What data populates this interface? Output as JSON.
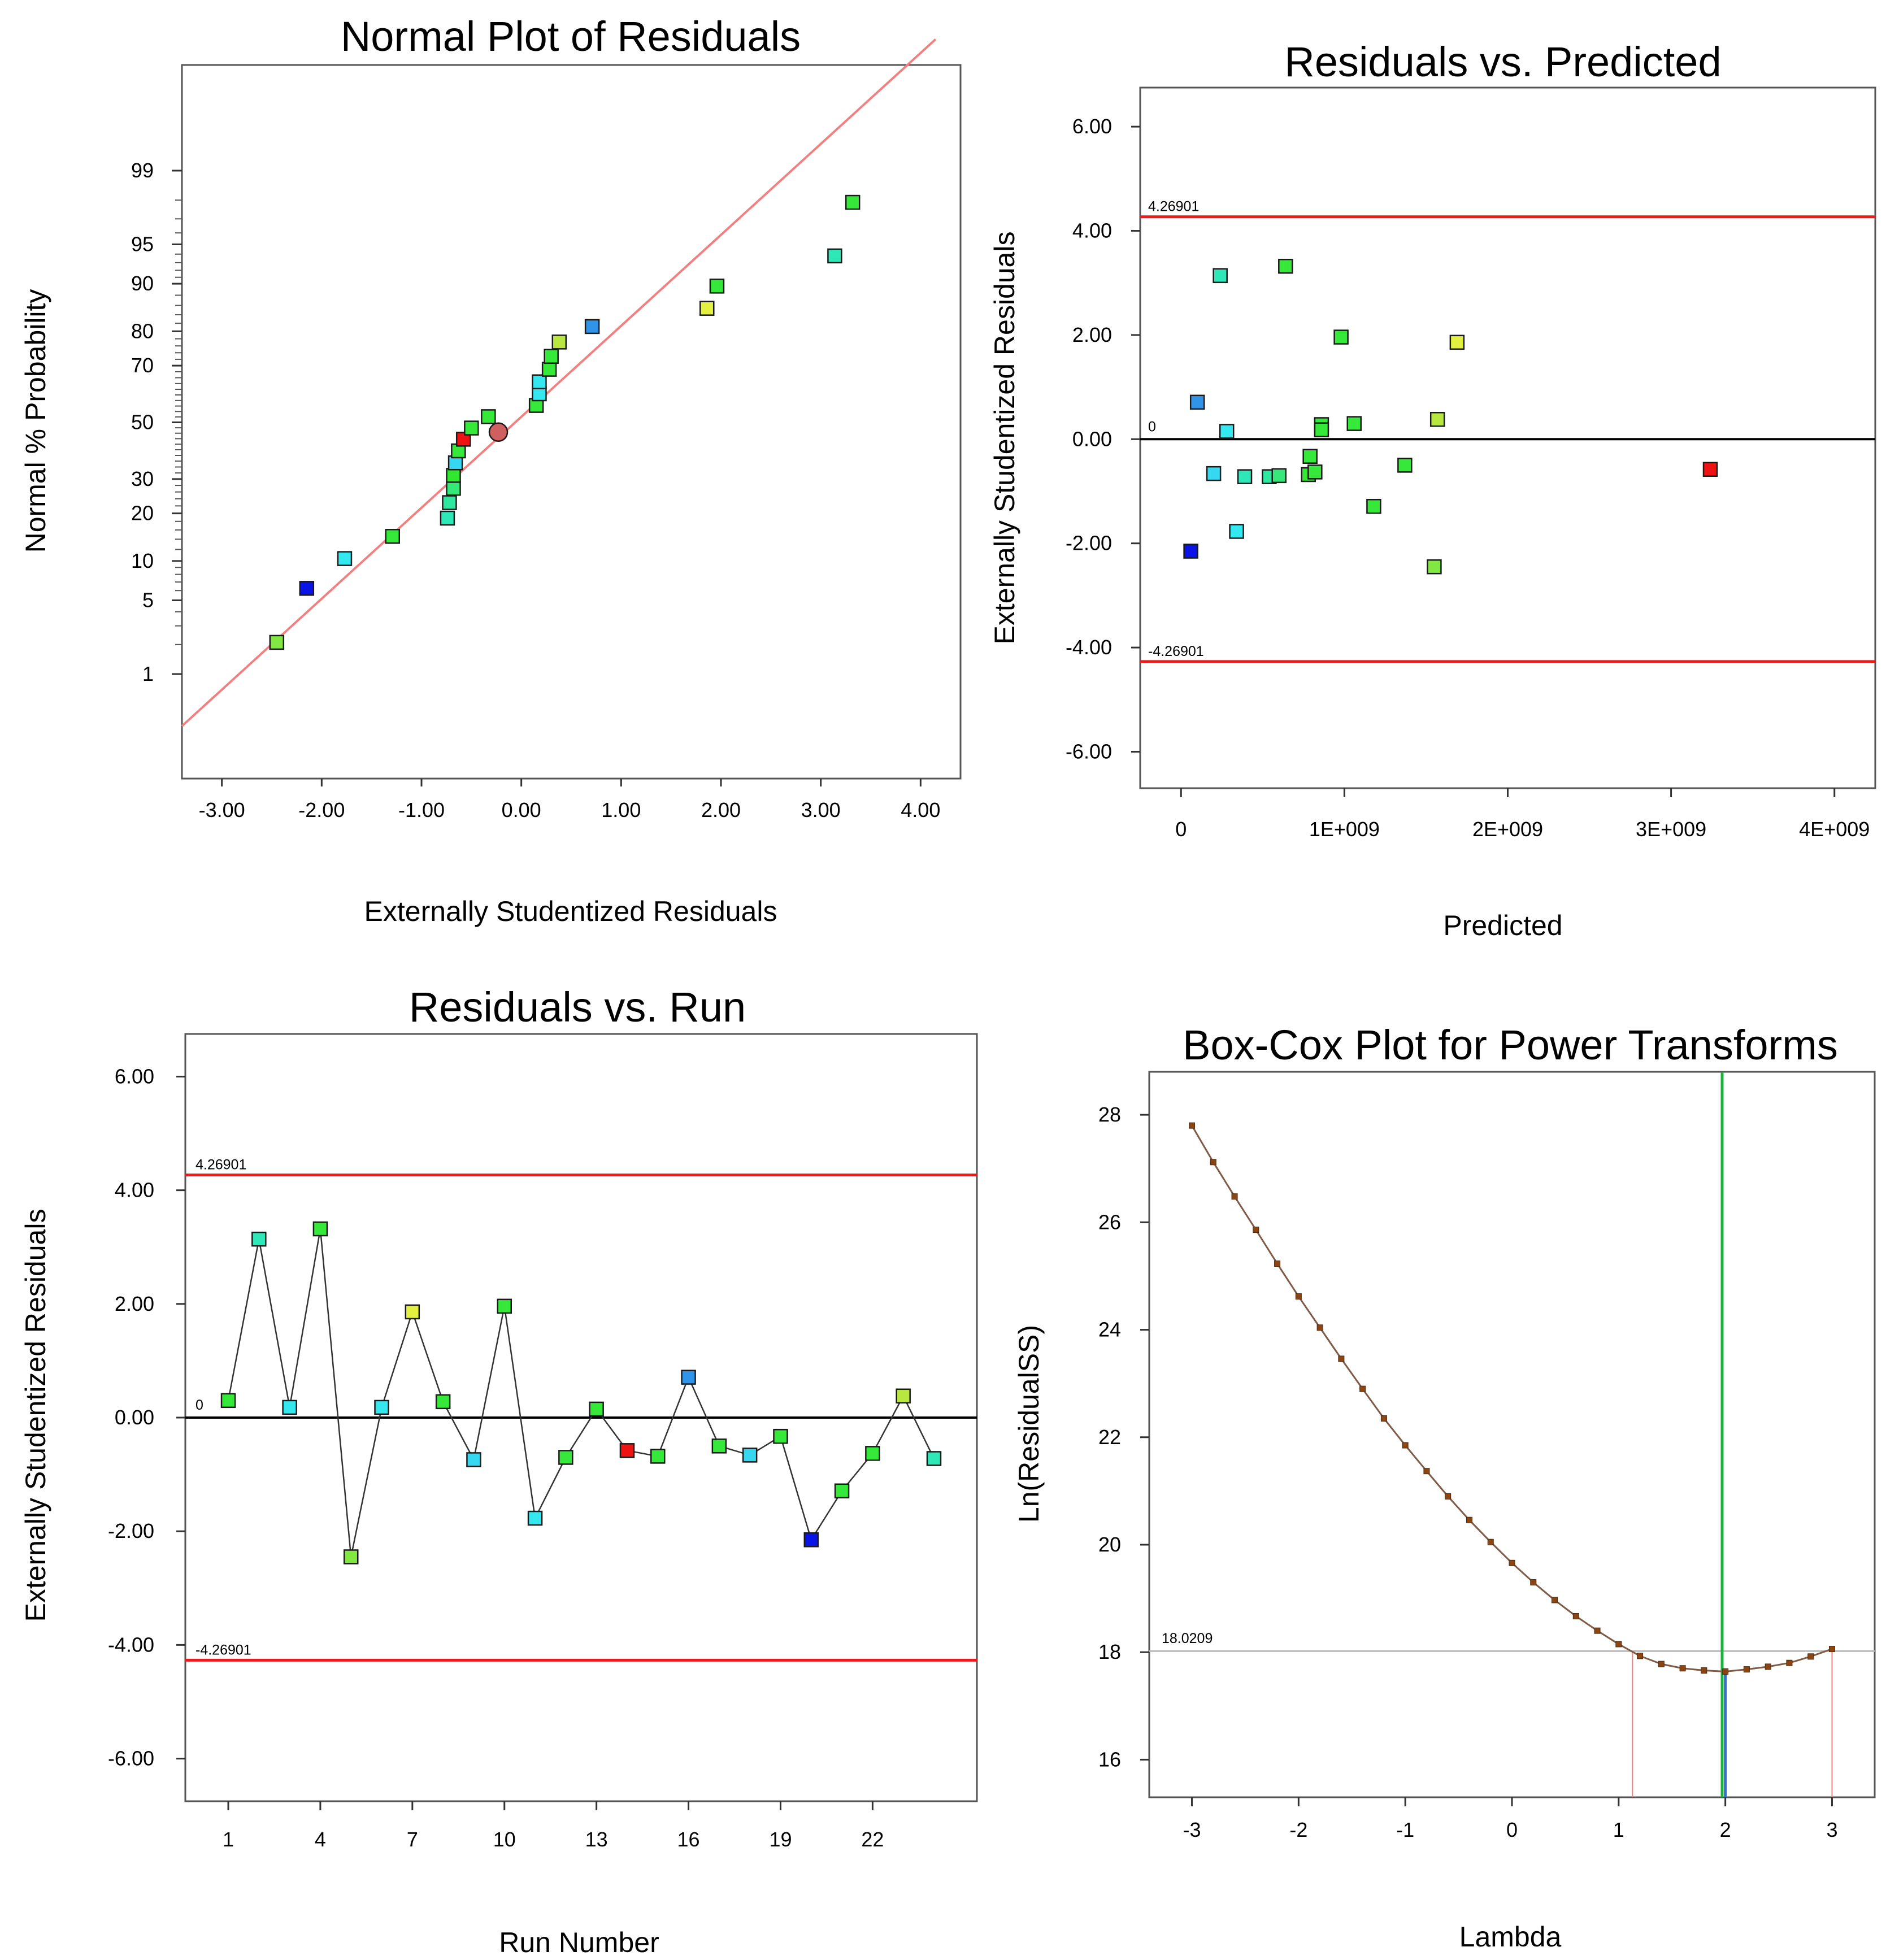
{
  "chart_data": [
    {
      "id": "normal",
      "type": "scatter",
      "title": "Normal Plot of Residuals",
      "xlabel": "Externally Studentized Residuals",
      "ylabel": "Normal % Probability",
      "xlim": [
        -3.4,
        4.4
      ],
      "xticks": [
        -3,
        -2,
        -1,
        0,
        1,
        2,
        3,
        4
      ],
      "xtick_labels": [
        "-3.00",
        "-2.00",
        "-1.00",
        "0.00",
        "1.00",
        "2.00",
        "3.00",
        "4.00"
      ],
      "yticks": [
        1,
        5,
        10,
        20,
        30,
        50,
        70,
        80,
        90,
        95,
        99
      ],
      "ytick_labels": [
        "1",
        "5",
        "10",
        "20",
        "30",
        "50",
        "70",
        "80",
        "90",
        "95",
        "99"
      ],
      "reference_line": {
        "from": [
          -3.4,
          0.25
        ],
        "to": [
          4.15,
          99.98
        ],
        "color": "#f28080"
      },
      "points": [
        {
          "x": -2.45,
          "p": 2.1,
          "color": "#80e840"
        },
        {
          "x": -2.15,
          "p": 6.25,
          "color": "#0a14e6"
        },
        {
          "x": -1.77,
          "p": 10.4,
          "color": "#35e8f0"
        },
        {
          "x": -1.29,
          "p": 14.6,
          "color": "#36e83a"
        },
        {
          "x": -0.74,
          "p": 18.8,
          "color": "#2ee8b8"
        },
        {
          "x": -0.72,
          "p": 22.9,
          "color": "#2ee8a0"
        },
        {
          "x": -0.68,
          "p": 27.1,
          "color": "#36e87a"
        },
        {
          "x": -0.68,
          "p": 31.2,
          "color": "#30e830"
        },
        {
          "x": -0.66,
          "p": 35.4,
          "color": "#35d8f0"
        },
        {
          "x": -0.63,
          "p": 39.6,
          "color": "#36e83a"
        },
        {
          "x": -0.58,
          "p": 43.8,
          "color": "#ee1212"
        },
        {
          "x": -0.5,
          "p": 47.9,
          "color": "#36e83a"
        },
        {
          "x": -0.33,
          "p": 52.1,
          "color": "#36e83a"
        },
        {
          "x": 0.15,
          "p": 56.2,
          "color": "#36e83a"
        },
        {
          "x": 0.18,
          "p": 60.4,
          "color": "#35e8f0"
        },
        {
          "x": 0.18,
          "p": 64.6,
          "color": "#35e8f0"
        },
        {
          "x": 0.28,
          "p": 68.8,
          "color": "#36e83a"
        },
        {
          "x": 0.3,
          "p": 72.9,
          "color": "#36e83a"
        },
        {
          "x": 0.38,
          "p": 77.1,
          "color": "#b8e840"
        },
        {
          "x": 0.71,
          "p": 81.2,
          "color": "#3095e8"
        },
        {
          "x": 1.86,
          "p": 85.4,
          "color": "#e2f040"
        },
        {
          "x": 1.96,
          "p": 89.6,
          "color": "#36e83a"
        },
        {
          "x": 3.14,
          "p": 93.8,
          "color": "#2ee8b8"
        },
        {
          "x": 3.32,
          "p": 97.9,
          "color": "#36e83a"
        }
      ],
      "center_marker": {
        "x": -0.23,
        "p": 46.4,
        "color": "#d06060"
      }
    },
    {
      "id": "predicted",
      "type": "scatter",
      "title": "Residuals vs. Predicted",
      "xlabel": "Predicted",
      "ylabel": "Externally Studentized Residuals",
      "xlim": [
        -250000000,
        4250000000
      ],
      "ylim": [
        -6.7,
        6.75
      ],
      "xticks": [
        0,
        1000000000,
        2000000000,
        3000000000,
        4000000000
      ],
      "xtick_labels": [
        "0",
        "1E+009",
        "2E+009",
        "3E+009",
        "4E+009"
      ],
      "yticks": [
        6,
        4,
        2,
        0,
        -2,
        -4,
        -6
      ],
      "ytick_labels": [
        "6.00",
        "4.00",
        "2.00",
        "0.00",
        "-2.00",
        "-4.00",
        "-6.00"
      ],
      "limit_upper": "4.26901",
      "limit_lower": "-4.26901",
      "limit_upper_value": 4.26901,
      "limit_lower_value": -4.26901,
      "zero_label": "0",
      "points": [
        {
          "x": 60000000,
          "y": -2.15,
          "color": "#0a14e6"
        },
        {
          "x": 100000000,
          "y": 0.71,
          "color": "#3095e8"
        },
        {
          "x": 200000000,
          "y": -0.66,
          "color": "#35d8f0"
        },
        {
          "x": 240000000,
          "y": 3.14,
          "color": "#2ee8b8"
        },
        {
          "x": 280000000,
          "y": 0.15,
          "color": "#35e8f0"
        },
        {
          "x": 340000000,
          "y": -1.77,
          "color": "#35e8f0"
        },
        {
          "x": 390000000,
          "y": -0.72,
          "color": "#2ee8b8"
        },
        {
          "x": 540000000,
          "y": -0.72,
          "color": "#2ee8a0"
        },
        {
          "x": 600000000,
          "y": -0.7,
          "color": "#36e87a"
        },
        {
          "x": 640000000,
          "y": 3.32,
          "color": "#36e83a"
        },
        {
          "x": 780000000,
          "y": -0.68,
          "color": "#30e830"
        },
        {
          "x": 790000000,
          "y": -0.33,
          "color": "#36e83a"
        },
        {
          "x": 820000000,
          "y": -0.63,
          "color": "#36e83a"
        },
        {
          "x": 860000000,
          "y": 0.28,
          "color": "#36e83a"
        },
        {
          "x": 860000000,
          "y": 0.18,
          "color": "#36e83a"
        },
        {
          "x": 980000000,
          "y": 1.96,
          "color": "#36e83a"
        },
        {
          "x": 1060000000,
          "y": 0.3,
          "color": "#36e83a"
        },
        {
          "x": 1180000000,
          "y": -1.29,
          "color": "#36e83a"
        },
        {
          "x": 1370000000,
          "y": -0.5,
          "color": "#36e83a"
        },
        {
          "x": 1550000000,
          "y": -2.45,
          "color": "#80e840"
        },
        {
          "x": 1570000000,
          "y": 0.38,
          "color": "#b8e840"
        },
        {
          "x": 1690000000,
          "y": 1.86,
          "color": "#e2f040"
        },
        {
          "x": 3240000000,
          "y": -0.58,
          "color": "#ee1212"
        }
      ]
    },
    {
      "id": "run",
      "type": "line",
      "title": "Residuals vs. Run",
      "xlabel": "Run Number",
      "ylabel": "Externally Studentized Residuals",
      "xlim": [
        -0.4,
        25.4
      ],
      "ylim": [
        -6.75,
        6.75
      ],
      "xticks": [
        1,
        4,
        7,
        10,
        13,
        16,
        19,
        22
      ],
      "xtick_labels": [
        "1",
        "4",
        "7",
        "10",
        "13",
        "16",
        "19",
        "22"
      ],
      "yticks": [
        6,
        4,
        2,
        0,
        -2,
        -4,
        -6
      ],
      "ytick_labels": [
        "6.00",
        "4.00",
        "2.00",
        "0.00",
        "-2.00",
        "-4.00",
        "-6.00"
      ],
      "limit_upper": "4.26901",
      "limit_lower": "-4.26901",
      "limit_upper_value": 4.26901,
      "limit_lower_value": -4.26901,
      "zero_label": "0",
      "points": [
        {
          "run": 1,
          "y": 0.3,
          "color": "#36e83a"
        },
        {
          "run": 2,
          "y": 3.14,
          "color": "#2ee8b8"
        },
        {
          "run": 3,
          "y": 0.18,
          "color": "#35e8f0"
        },
        {
          "run": 4,
          "y": 3.32,
          "color": "#36e83a"
        },
        {
          "run": 5,
          "y": -2.45,
          "color": "#80e840"
        },
        {
          "run": 6,
          "y": 0.18,
          "color": "#35e8f0"
        },
        {
          "run": 7,
          "y": 1.86,
          "color": "#e2f040"
        },
        {
          "run": 8,
          "y": 0.28,
          "color": "#36e83a"
        },
        {
          "run": 9,
          "y": -0.74,
          "color": "#35d8f0"
        },
        {
          "run": 10,
          "y": 1.96,
          "color": "#36e83a"
        },
        {
          "run": 11,
          "y": -1.77,
          "color": "#35e8f0"
        },
        {
          "run": 12,
          "y": -0.7,
          "color": "#36e83a"
        },
        {
          "run": 13,
          "y": 0.15,
          "color": "#36e83a"
        },
        {
          "run": 14,
          "y": -0.58,
          "color": "#ee1212"
        },
        {
          "run": 15,
          "y": -0.68,
          "color": "#36e83a"
        },
        {
          "run": 16,
          "y": 0.71,
          "color": "#3095e8"
        },
        {
          "run": 17,
          "y": -0.5,
          "color": "#36e83a"
        },
        {
          "run": 18,
          "y": -0.66,
          "color": "#35d8f0"
        },
        {
          "run": 19,
          "y": -0.33,
          "color": "#36e83a"
        },
        {
          "run": 20,
          "y": -2.15,
          "color": "#0a14e6"
        },
        {
          "run": 21,
          "y": -1.29,
          "color": "#36e83a"
        },
        {
          "run": 22,
          "y": -0.63,
          "color": "#36e83a"
        },
        {
          "run": 23,
          "y": 0.38,
          "color": "#b8e840"
        },
        {
          "run": 24,
          "y": -0.72,
          "color": "#2ee8b8"
        }
      ]
    },
    {
      "id": "boxcox",
      "type": "line",
      "title": "Box-Cox Plot for Power Transforms",
      "xlabel": "Lambda",
      "ylabel": "Ln(ResidualSS)",
      "xlim": [
        -3.4,
        3.4
      ],
      "ylim": [
        15.3,
        28.8
      ],
      "xticks": [
        -3,
        -2,
        -1,
        0,
        1,
        2,
        3
      ],
      "xtick_labels": [
        "-3",
        "-2",
        "-1",
        "0",
        "1",
        "2",
        "3"
      ],
      "yticks": [
        16,
        18,
        20,
        22,
        24,
        26,
        28
      ],
      "ytick_labels": [
        "16",
        "18",
        "20",
        "22",
        "24",
        "26",
        "28"
      ],
      "ci_label": "18.0209",
      "ci_value": 18.0209,
      "ci_low": 1.13,
      "ci_high": 3.0,
      "best_lambda": 1.97,
      "current_lambda": 2.0,
      "lambda": [
        -3,
        -2.8,
        -2.6,
        -2.4,
        -2.2,
        -2.0,
        -1.8,
        -1.6,
        -1.4,
        -1.2,
        -1.0,
        -0.8,
        -0.6,
        -0.4,
        -0.2,
        0.0,
        0.2,
        0.4,
        0.6,
        0.8,
        1.0,
        1.2,
        1.4,
        1.6,
        1.8,
        2.0,
        2.2,
        2.4,
        2.6,
        2.8,
        3.0
      ],
      "ln_residual_ss": [
        27.8,
        27.12,
        26.48,
        25.86,
        25.23,
        24.62,
        24.04,
        23.46,
        22.9,
        22.35,
        21.85,
        21.37,
        20.9,
        20.46,
        20.05,
        19.66,
        19.3,
        18.97,
        18.67,
        18.4,
        18.15,
        17.93,
        17.78,
        17.7,
        17.66,
        17.64,
        17.68,
        17.73,
        17.8,
        17.92,
        18.06
      ],
      "colors": {
        "curve": "#7f5b46",
        "marker": "#8b4513",
        "best": "#1cb33c",
        "current": "#3470d0",
        "ci": "#f08080",
        "ci_level": "#b8b8b8"
      }
    }
  ]
}
